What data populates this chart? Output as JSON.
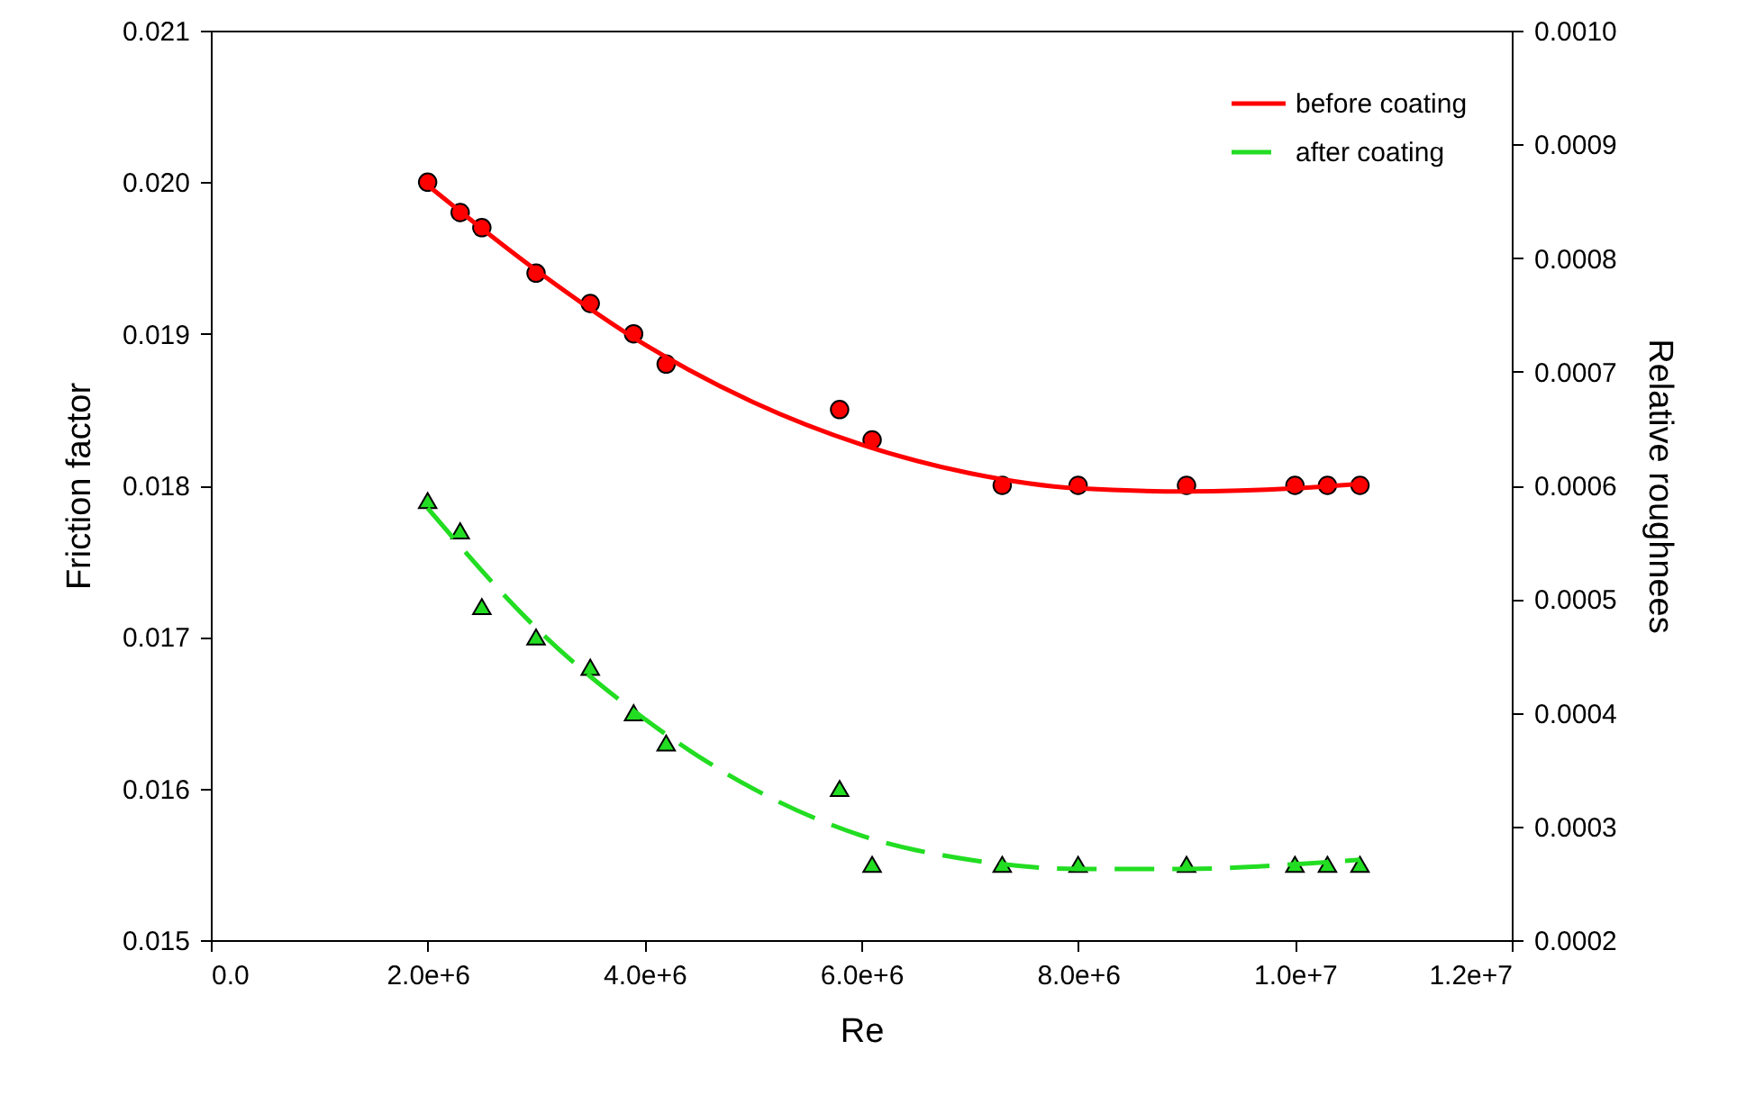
{
  "chart_data": {
    "type": "scatter",
    "xlabel": "Re",
    "ylabel": "Friction factor",
    "y2label": "Relative roughnees",
    "xlim": [
      0,
      12000000
    ],
    "xticks": [
      {
        "value": 0,
        "label": "0.0"
      },
      {
        "value": 2000000,
        "label": "2.0e+6"
      },
      {
        "value": 4000000,
        "label": "4.0e+6"
      },
      {
        "value": 6000000,
        "label": "6.0e+6"
      },
      {
        "value": 8000000,
        "label": "8.0e+6"
      },
      {
        "value": 10000000,
        "label": "1.0e+7"
      },
      {
        "value": 12000000,
        "label": "1.2e+7"
      }
    ],
    "ylim": [
      0.015,
      0.021
    ],
    "yticks": [
      0.015,
      0.016,
      0.017,
      0.018,
      0.019,
      {
        "value": 0.02,
        "label": "0.020"
      },
      0.021
    ],
    "y2lim": [
      0.0002,
      0.001
    ],
    "y2ticks": [
      {
        "value": 0.0002,
        "label": "0.0002"
      },
      {
        "value": 0.0003,
        "label": "0.0003"
      },
      {
        "value": 0.0004,
        "label": "0.0004"
      },
      {
        "value": 0.0005,
        "label": "0.0005"
      },
      {
        "value": 0.0006,
        "label": "0.0006"
      },
      {
        "value": 0.0007,
        "label": "0.0007"
      },
      {
        "value": 0.0008,
        "label": "0.0008"
      },
      {
        "value": 0.0009,
        "label": "0.0009"
      },
      {
        "value": 0.001,
        "label": "0.0010"
      }
    ],
    "legend": "top right",
    "series": [
      {
        "marker": "circle",
        "color": "#ff0000",
        "x": [
          2000000,
          2300000,
          2500000,
          3000000,
          3500000,
          3900000,
          4200000,
          5800000,
          6100000,
          7300000,
          8000000,
          9000000,
          10000000,
          10300000,
          10600000
        ],
        "values": [
          0.02,
          0.0198,
          0.0197,
          0.0194,
          0.0192,
          0.019,
          0.0188,
          0.0185,
          0.0183,
          0.018,
          0.018,
          0.018,
          0.018,
          0.018,
          0.018
        ]
      },
      {
        "marker": "triangle",
        "color": "#22dd22",
        "x": [
          2000000,
          2300000,
          2500000,
          3000000,
          3500000,
          3900000,
          4200000,
          5800000,
          6100000,
          7300000,
          8000000,
          9000000,
          10000000,
          10300000,
          10600000
        ],
        "values": [
          0.0179,
          0.0177,
          0.0172,
          0.017,
          0.0168,
          0.0165,
          0.0163,
          0.016,
          0.0155,
          0.0155,
          0.0155,
          0.0155,
          0.0155,
          0.0155,
          0.0155
        ]
      },
      {
        "type": "line",
        "name": "before coating",
        "color": "#ff0000",
        "line_style": "solid",
        "x": [
          2000000,
          3000000,
          4000000,
          5000000,
          6000000,
          7000000,
          8000000,
          9000000,
          10000000,
          10600000
        ],
        "values": [
          0.01998,
          0.01942,
          0.01893,
          0.01855,
          0.01827,
          0.01808,
          0.01798,
          0.01796,
          0.01798,
          0.01801
        ]
      },
      {
        "type": "line",
        "name": "after coating",
        "color": "#22dd22",
        "line_style": "dashed",
        "x": [
          2000000,
          3000000,
          4000000,
          5000000,
          6000000,
          7000000,
          8000000,
          9000000,
          10000000,
          10600000
        ],
        "values": [
          0.01785,
          0.01706,
          0.01646,
          0.016,
          0.01569,
          0.01553,
          0.01547,
          0.01547,
          0.0155,
          0.01553
        ]
      }
    ]
  }
}
